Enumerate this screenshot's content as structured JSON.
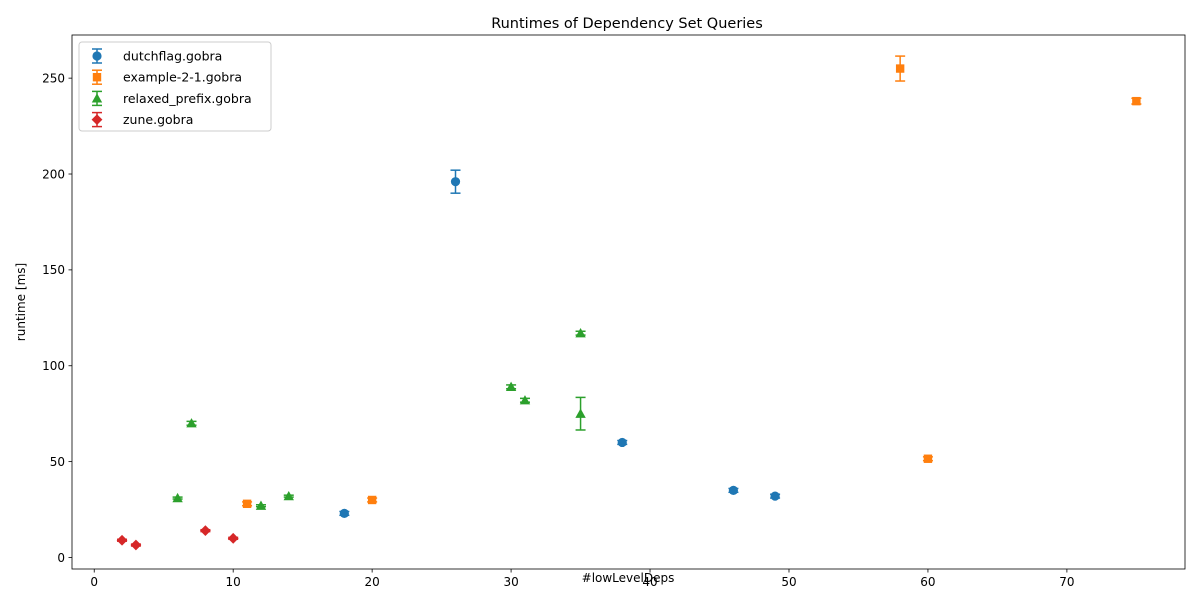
{
  "chart_data": {
    "type": "scatter",
    "title": "Runtimes of Dependency Set Queries",
    "xlabel": "#lowLevelDeps",
    "ylabel": "runtime [ms]",
    "xlim": [
      -1.6,
      78.5
    ],
    "ylim": [
      -6,
      272.5
    ],
    "xticks": [
      0,
      10,
      20,
      30,
      40,
      50,
      60,
      70
    ],
    "yticks": [
      0,
      50,
      100,
      150,
      200,
      250
    ],
    "grid": false,
    "legend_position": "top-left",
    "error_bars": true,
    "series": [
      {
        "name": "dutchflag.gobra",
        "color": "#1f77b4",
        "marker": "circle",
        "points": [
          {
            "x": 18,
            "y": 23,
            "err": 1
          },
          {
            "x": 26,
            "y": 196,
            "err": 6
          },
          {
            "x": 38,
            "y": 60,
            "err": 1
          },
          {
            "x": 46,
            "y": 35,
            "err": 1
          },
          {
            "x": 49,
            "y": 32,
            "err": 1
          }
        ]
      },
      {
        "name": "example-2-1.gobra",
        "color": "#ff7f0e",
        "marker": "square",
        "points": [
          {
            "x": 11,
            "y": 28,
            "err": 1
          },
          {
            "x": 20,
            "y": 30,
            "err": 1
          },
          {
            "x": 58,
            "y": 255,
            "err": 6.5
          },
          {
            "x": 60,
            "y": 51.5,
            "err": 1
          },
          {
            "x": 75,
            "y": 238,
            "err": 1.5
          }
        ]
      },
      {
        "name": "relaxed_prefix.gobra",
        "color": "#2ca02c",
        "marker": "triangle",
        "points": [
          {
            "x": 6,
            "y": 31,
            "err": 0.5
          },
          {
            "x": 7,
            "y": 70,
            "err": 1
          },
          {
            "x": 12,
            "y": 27,
            "err": 0.5
          },
          {
            "x": 14,
            "y": 32,
            "err": 0.5
          },
          {
            "x": 30,
            "y": 89,
            "err": 1
          },
          {
            "x": 31,
            "y": 82,
            "err": 1
          },
          {
            "x": 35,
            "y": 117,
            "err": 1
          },
          {
            "x": 35,
            "y": 75,
            "err": 8.5
          }
        ]
      },
      {
        "name": "zune.gobra",
        "color": "#d62728",
        "marker": "diamond",
        "points": [
          {
            "x": 2,
            "y": 9,
            "err": 0.5
          },
          {
            "x": 3,
            "y": 6.5,
            "err": 0.5
          },
          {
            "x": 8,
            "y": 14,
            "err": 0.5
          },
          {
            "x": 10,
            "y": 10,
            "err": 0.5
          }
        ]
      }
    ]
  }
}
